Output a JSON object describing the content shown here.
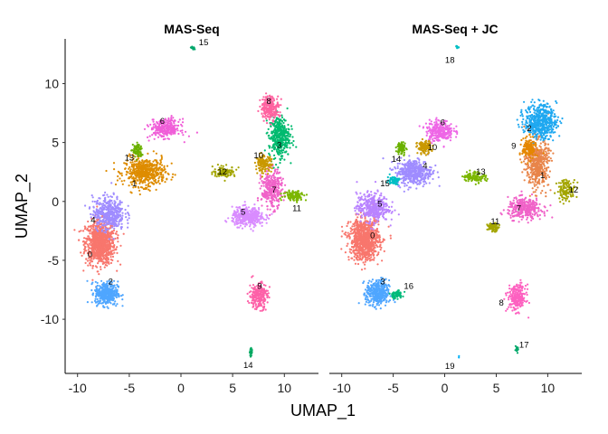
{
  "chart_data": {
    "type": "scatter",
    "xlabel": "UMAP_1",
    "ylabel": "UMAP_2",
    "xlim": [
      -11.2,
      13.3
    ],
    "ylim": [
      -14.6,
      13.8
    ],
    "x_ticks": [
      -10,
      -5,
      0,
      5,
      10
    ],
    "y_ticks": [
      10,
      5,
      0,
      -5,
      -10
    ],
    "grid": false,
    "legend": "none",
    "palette": [
      "#F8766D",
      "#E58700",
      "#C99800",
      "#A3A500",
      "#6BB100",
      "#00BA38",
      "#00BF7D",
      "#00C0AF",
      "#00BCD8",
      "#00B0F6",
      "#619CFF",
      "#B983FF",
      "#E76BF3",
      "#FD61D1",
      "#FF67A4"
    ],
    "panels": [
      {
        "title": "MAS-Seq",
        "clusters": [
          {
            "label": "0",
            "color": "#F8766D",
            "center": [
              -7.8,
              -3.5
            ],
            "spread": [
              1.3,
              1.7
            ],
            "n": 900
          },
          {
            "label": "1",
            "color": "#DE8C00",
            "center": [
              -3.5,
              2.5
            ],
            "spread": [
              1.8,
              1.1
            ],
            "n": 520
          },
          {
            "label": "2",
            "color": "#4FA6FF",
            "center": [
              -7.2,
              -7.8
            ],
            "spread": [
              1.0,
              0.9
            ],
            "n": 420
          },
          {
            "label": "3",
            "color": "#00BA6F",
            "center": [
              9.5,
              5.5
            ],
            "spread": [
              0.9,
              1.6
            ],
            "n": 380
          },
          {
            "label": "4",
            "color": "#9F8CFF",
            "center": [
              -7.0,
              -1.0
            ],
            "spread": [
              1.4,
              1.3
            ],
            "n": 420
          },
          {
            "label": "5",
            "color": "#D98CFF",
            "center": [
              6.5,
              -1.3
            ],
            "spread": [
              1.4,
              0.7
            ],
            "n": 400
          },
          {
            "label": "6",
            "color": "#F05ED8",
            "center": [
              -1.5,
              6.2
            ],
            "spread": [
              1.3,
              0.7
            ],
            "n": 280
          },
          {
            "label": "7",
            "color": "#F062C8",
            "center": [
              8.8,
              1.0
            ],
            "spread": [
              0.9,
              1.4
            ],
            "n": 320
          },
          {
            "label": "8",
            "color": "#FF63A0",
            "center": [
              8.6,
              8.0
            ],
            "spread": [
              0.8,
              0.9
            ],
            "n": 240
          },
          {
            "label": "9",
            "color": "#FD61A8",
            "center": [
              7.5,
              -8.0
            ],
            "spread": [
              0.8,
              1.0
            ],
            "n": 240
          },
          {
            "label": "10",
            "color": "#C99800",
            "center": [
              8.0,
              3.2
            ],
            "spread": [
              0.7,
              0.6
            ],
            "n": 150
          },
          {
            "label": "11",
            "color": "#7BB600",
            "center": [
              11.0,
              0.5
            ],
            "spread": [
              1.0,
              0.4
            ],
            "n": 110
          },
          {
            "label": "12",
            "color": "#A3A500",
            "center": [
              4.2,
              2.5
            ],
            "spread": [
              1.0,
              0.4
            ],
            "n": 110
          },
          {
            "label": "13",
            "color": "#6BB100",
            "center": [
              -4.2,
              4.3
            ],
            "spread": [
              0.4,
              0.6
            ],
            "n": 80
          },
          {
            "label": "14",
            "color": "#00A860",
            "center": [
              6.8,
              -12.8
            ],
            "spread": [
              0.15,
              0.25
            ],
            "n": 20
          },
          {
            "label": "15",
            "color": "#00A66A",
            "center": [
              1.2,
              13.0
            ],
            "spread": [
              0.15,
              0.15
            ],
            "n": 12
          }
        ],
        "labels": [
          {
            "text": "15",
            "pos": [
              2.2,
              13.5
            ]
          },
          {
            "text": "6",
            "pos": [
              -1.8,
              6.8
            ]
          },
          {
            "text": "8",
            "pos": [
              8.5,
              8.5
            ]
          },
          {
            "text": "3",
            "pos": [
              9.5,
              4.8
            ]
          },
          {
            "text": "13",
            "pos": [
              -5.0,
              3.7
            ]
          },
          {
            "text": "10",
            "pos": [
              7.5,
              3.9
            ]
          },
          {
            "text": "12",
            "pos": [
              4.0,
              2.5
            ]
          },
          {
            "text": "1",
            "pos": [
              -4.5,
              1.5
            ]
          },
          {
            "text": "7",
            "pos": [
              9.0,
              1.0
            ]
          },
          {
            "text": "11",
            "pos": [
              11.2,
              -0.6
            ]
          },
          {
            "text": "5",
            "pos": [
              6.0,
              -0.9
            ]
          },
          {
            "text": "4",
            "pos": [
              -8.5,
              -1.6
            ]
          },
          {
            "text": "0",
            "pos": [
              -8.8,
              -4.5
            ]
          },
          {
            "text": "2",
            "pos": [
              -6.8,
              -6.8
            ]
          },
          {
            "text": "9",
            "pos": [
              7.6,
              -7.2
            ]
          },
          {
            "text": "14",
            "pos": [
              6.5,
              -13.9
            ]
          }
        ]
      },
      {
        "title": "MAS-Seq + JC",
        "clusters": [
          {
            "label": "0",
            "color": "#F8766D",
            "center": [
              -7.8,
              -3.2
            ],
            "spread": [
              1.3,
              1.6
            ],
            "n": 900
          },
          {
            "label": "1",
            "color": "#E8854A",
            "center": [
              9.0,
              3.2
            ],
            "spread": [
              1.0,
              1.8
            ],
            "n": 480
          },
          {
            "label": "2",
            "color": "#1FA8F0",
            "center": [
              9.3,
              6.8
            ],
            "spread": [
              1.4,
              1.3
            ],
            "n": 520
          },
          {
            "label": "3",
            "color": "#4FA6FF",
            "center": [
              -6.5,
              -7.8
            ],
            "spread": [
              1.0,
              1.0
            ],
            "n": 380
          },
          {
            "label": "4",
            "color": "#9F8CFF",
            "center": [
              -3.0,
              2.5
            ],
            "spread": [
              1.6,
              1.0
            ],
            "n": 420
          },
          {
            "label": "5",
            "color": "#B983FF",
            "center": [
              -7.0,
              -0.5
            ],
            "spread": [
              1.4,
              1.1
            ],
            "n": 380
          },
          {
            "label": "6",
            "color": "#EE66E6",
            "center": [
              -0.5,
              6.0
            ],
            "spread": [
              1.2,
              0.8
            ],
            "n": 260
          },
          {
            "label": "7",
            "color": "#F062C8",
            "center": [
              7.8,
              -0.6
            ],
            "spread": [
              1.5,
              0.8
            ],
            "n": 340
          },
          {
            "label": "8",
            "color": "#FD61C0",
            "center": [
              7.0,
              -8.2
            ],
            "spread": [
              0.8,
              1.0
            ],
            "n": 240
          },
          {
            "label": "9",
            "color": "#E58700",
            "center": [
              8.2,
              4.5
            ],
            "spread": [
              0.6,
              0.8
            ],
            "n": 150
          },
          {
            "label": "10",
            "color": "#C99800",
            "center": [
              -2.0,
              4.6
            ],
            "spread": [
              0.6,
              0.5
            ],
            "n": 130
          },
          {
            "label": "11",
            "color": "#A3A500",
            "center": [
              4.7,
              -2.2
            ],
            "spread": [
              0.5,
              0.3
            ],
            "n": 90
          },
          {
            "label": "12",
            "color": "#A3A500",
            "center": [
              11.8,
              1.0
            ],
            "spread": [
              0.8,
              0.8
            ],
            "n": 120
          },
          {
            "label": "13",
            "color": "#7BB600",
            "center": [
              2.9,
              2.1
            ],
            "spread": [
              1.0,
              0.4
            ],
            "n": 110
          },
          {
            "label": "14",
            "color": "#6BB100",
            "center": [
              -4.2,
              4.5
            ],
            "spread": [
              0.4,
              0.5
            ],
            "n": 80
          },
          {
            "label": "15",
            "color": "#00BFC4",
            "center": [
              -5.0,
              1.8
            ],
            "spread": [
              0.5,
              0.3
            ],
            "n": 70
          },
          {
            "label": "16",
            "color": "#00BA7A",
            "center": [
              -4.7,
              -7.9
            ],
            "spread": [
              0.6,
              0.3
            ],
            "n": 70
          },
          {
            "label": "17",
            "color": "#00A86A",
            "center": [
              7.0,
              -12.6
            ],
            "spread": [
              0.15,
              0.2
            ],
            "n": 15
          },
          {
            "label": "18",
            "color": "#00BFC4",
            "center": [
              1.2,
              13.1
            ],
            "spread": [
              0.15,
              0.15
            ],
            "n": 12
          },
          {
            "label": "19",
            "color": "#00B0F6",
            "center": [
              1.4,
              -13.2
            ],
            "spread": [
              0.05,
              0.05
            ],
            "n": 2
          }
        ],
        "labels": [
          {
            "text": "18",
            "pos": [
              0.5,
              12.0
            ]
          },
          {
            "text": "6",
            "pos": [
              -0.2,
              6.7
            ]
          },
          {
            "text": "2",
            "pos": [
              8.2,
              6.2
            ]
          },
          {
            "text": "10",
            "pos": [
              -1.2,
              4.6
            ]
          },
          {
            "text": "9",
            "pos": [
              6.7,
              4.7
            ]
          },
          {
            "text": "14",
            "pos": [
              -4.7,
              3.6
            ]
          },
          {
            "text": "4",
            "pos": [
              -1.9,
              3.0
            ]
          },
          {
            "text": "13",
            "pos": [
              3.5,
              2.5
            ]
          },
          {
            "text": "1",
            "pos": [
              9.5,
              2.2
            ]
          },
          {
            "text": "15",
            "pos": [
              -5.8,
              1.5
            ]
          },
          {
            "text": "12",
            "pos": [
              12.5,
              1.0
            ]
          },
          {
            "text": "5",
            "pos": [
              -6.3,
              -0.2
            ]
          },
          {
            "text": "7",
            "pos": [
              7.2,
              -0.6
            ]
          },
          {
            "text": "11",
            "pos": [
              4.9,
              -1.7
            ]
          },
          {
            "text": "0",
            "pos": [
              -7.0,
              -2.9
            ]
          },
          {
            "text": "3",
            "pos": [
              -6.0,
              -6.8
            ]
          },
          {
            "text": "16",
            "pos": [
              -3.5,
              -7.2
            ]
          },
          {
            "text": "8",
            "pos": [
              5.5,
              -8.6
            ]
          },
          {
            "text": "17",
            "pos": [
              7.7,
              -12.2
            ]
          },
          {
            "text": "19",
            "pos": [
              0.5,
              -14.0
            ]
          }
        ]
      }
    ]
  }
}
